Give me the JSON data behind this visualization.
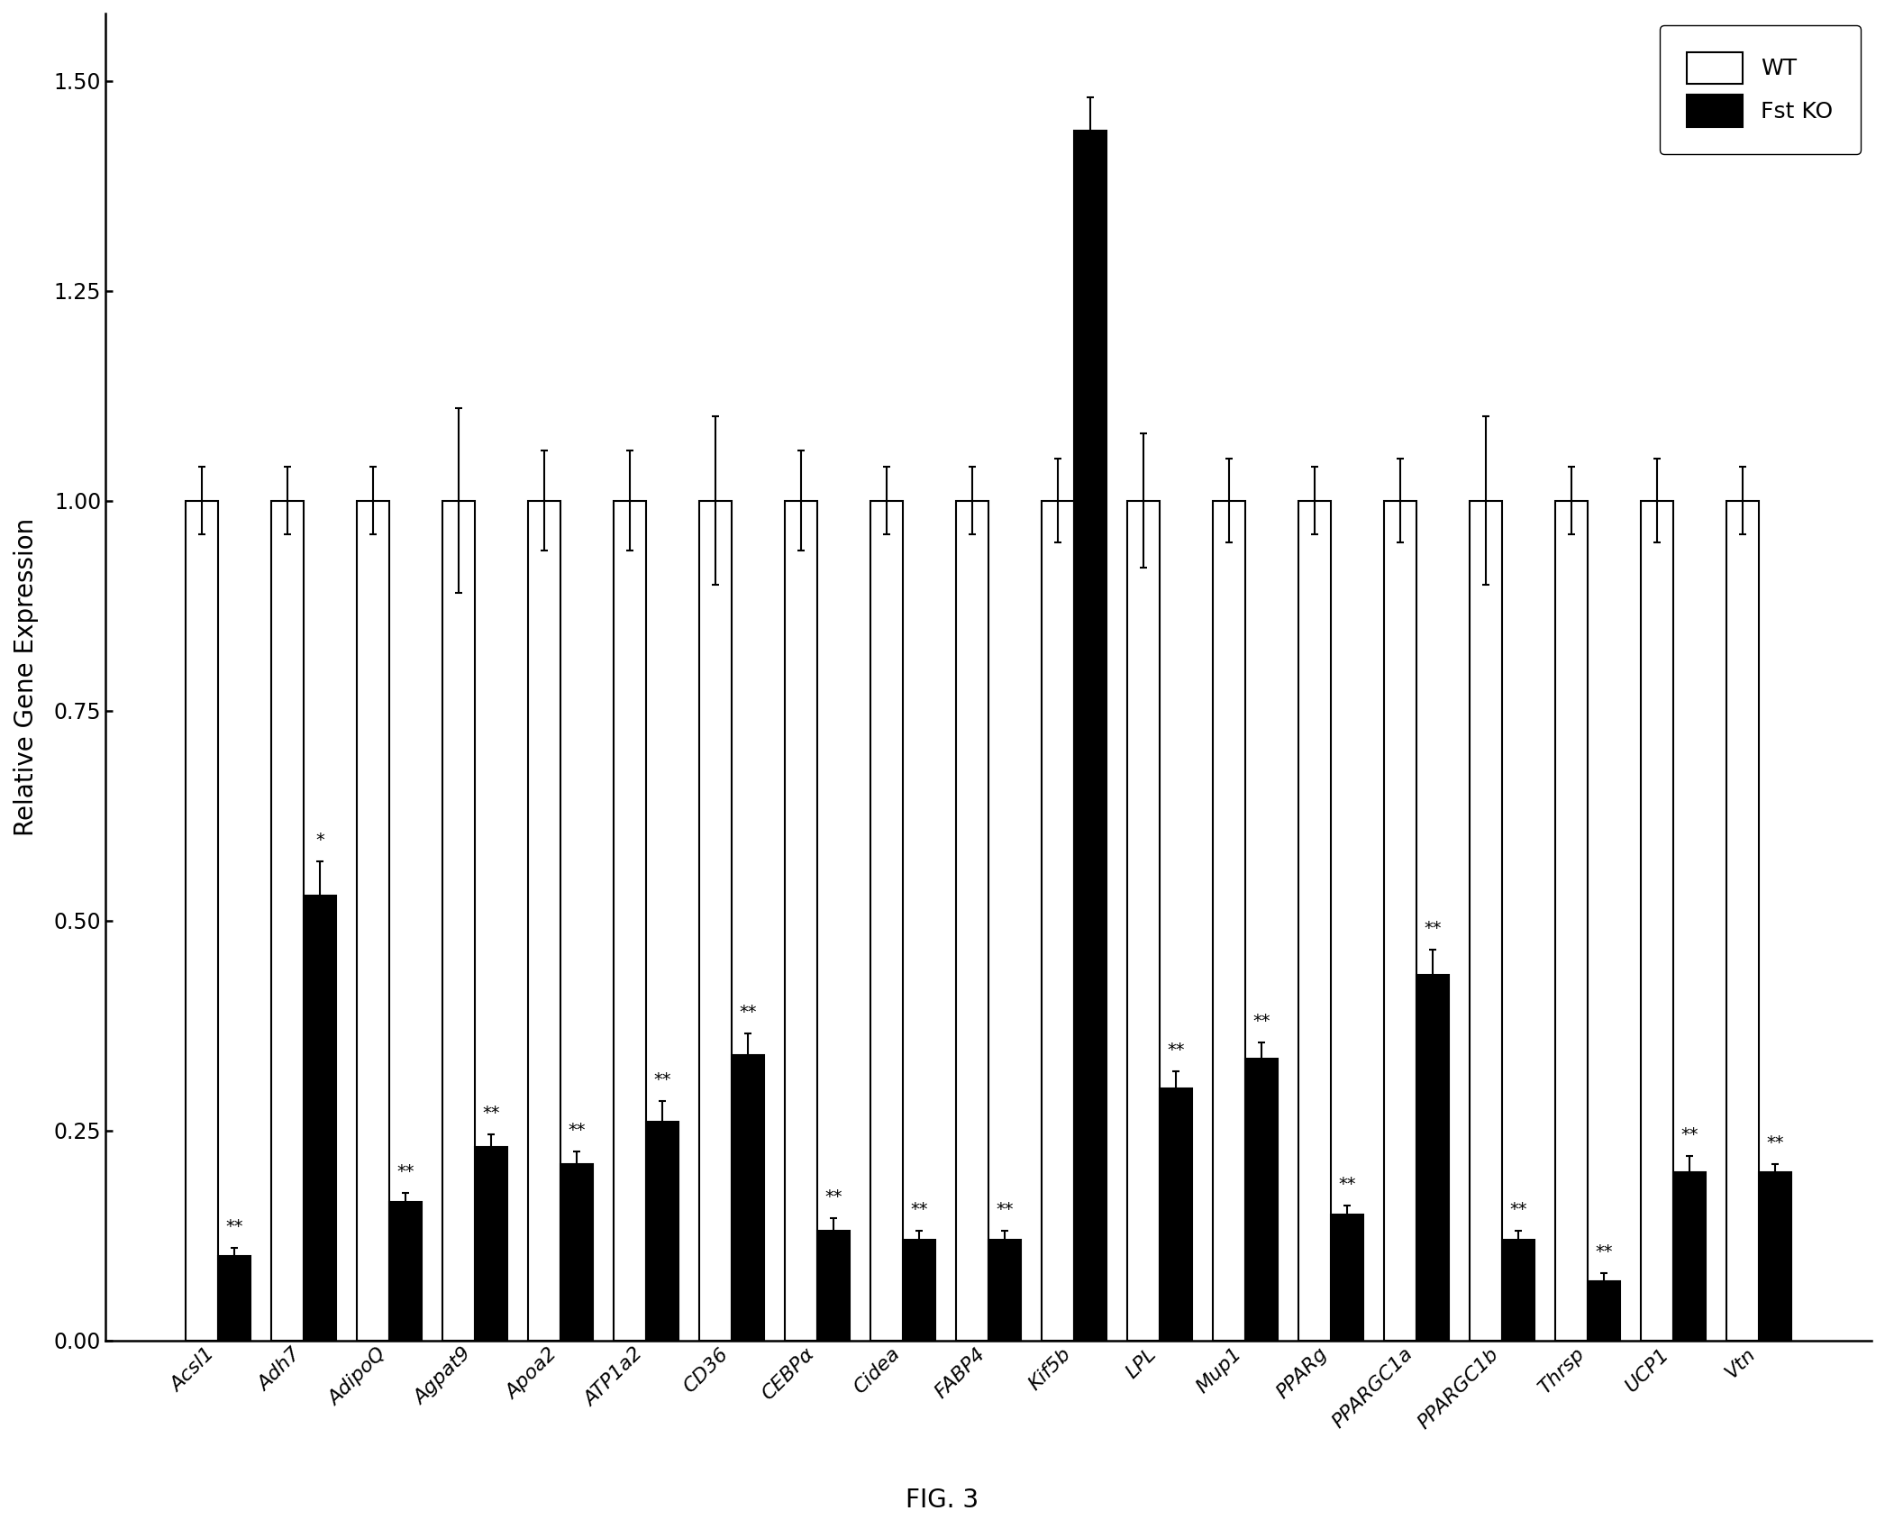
{
  "categories": [
    "Acsl1",
    "Adh7",
    "AdipoQ",
    "Agpat9",
    "Apoa2",
    "ATP1a2",
    "CD36",
    "CEBPα",
    "Cidea",
    "FABP4",
    "Kif5b",
    "LPL",
    "Mup1",
    "PPARg",
    "PPARGC1a",
    "PPARGC1b",
    "Thrsp",
    "UCP1",
    "Vtn"
  ],
  "wt_values": [
    1.0,
    1.0,
    1.0,
    1.0,
    1.0,
    1.0,
    1.0,
    1.0,
    1.0,
    1.0,
    1.0,
    1.0,
    1.0,
    1.0,
    1.0,
    1.0,
    1.0,
    1.0,
    1.0
  ],
  "ko_values": [
    0.1,
    0.53,
    0.165,
    0.23,
    0.21,
    0.26,
    0.34,
    0.13,
    0.12,
    0.12,
    1.44,
    0.3,
    0.335,
    0.15,
    0.435,
    0.12,
    0.07,
    0.2,
    0.2
  ],
  "wt_errors": [
    0.04,
    0.04,
    0.04,
    0.11,
    0.06,
    0.06,
    0.1,
    0.06,
    0.04,
    0.04,
    0.05,
    0.08,
    0.05,
    0.04,
    0.05,
    0.1,
    0.04,
    0.05,
    0.04
  ],
  "ko_errors": [
    0.01,
    0.04,
    0.01,
    0.015,
    0.015,
    0.025,
    0.025,
    0.015,
    0.01,
    0.01,
    0.04,
    0.02,
    0.02,
    0.01,
    0.03,
    0.01,
    0.01,
    0.02,
    0.01
  ],
  "significance": [
    "**",
    "*",
    "**",
    "**",
    "**",
    "**",
    "**",
    "**",
    "**",
    "**",
    "",
    "**",
    "**",
    "**",
    "**",
    "**",
    "**",
    "**",
    "**"
  ],
  "ylabel": "Relative Gene Expression",
  "ylim": [
    0,
    1.58
  ],
  "yticks": [
    0.0,
    0.25,
    0.5,
    0.75,
    1.0,
    1.25,
    1.5
  ],
  "ytick_labels": [
    "0.00",
    "0.25",
    "0.50",
    "0.75",
    "1.00",
    "1.25",
    "1.50"
  ],
  "legend_labels": [
    "WT",
    "Fst KO"
  ],
  "wt_color": "white",
  "ko_color": "black",
  "bar_edge_color": "black",
  "figure_caption": "FIG. 3",
  "bar_width": 0.38,
  "figsize": [
    20.92,
    17.07
  ],
  "dpi": 100
}
